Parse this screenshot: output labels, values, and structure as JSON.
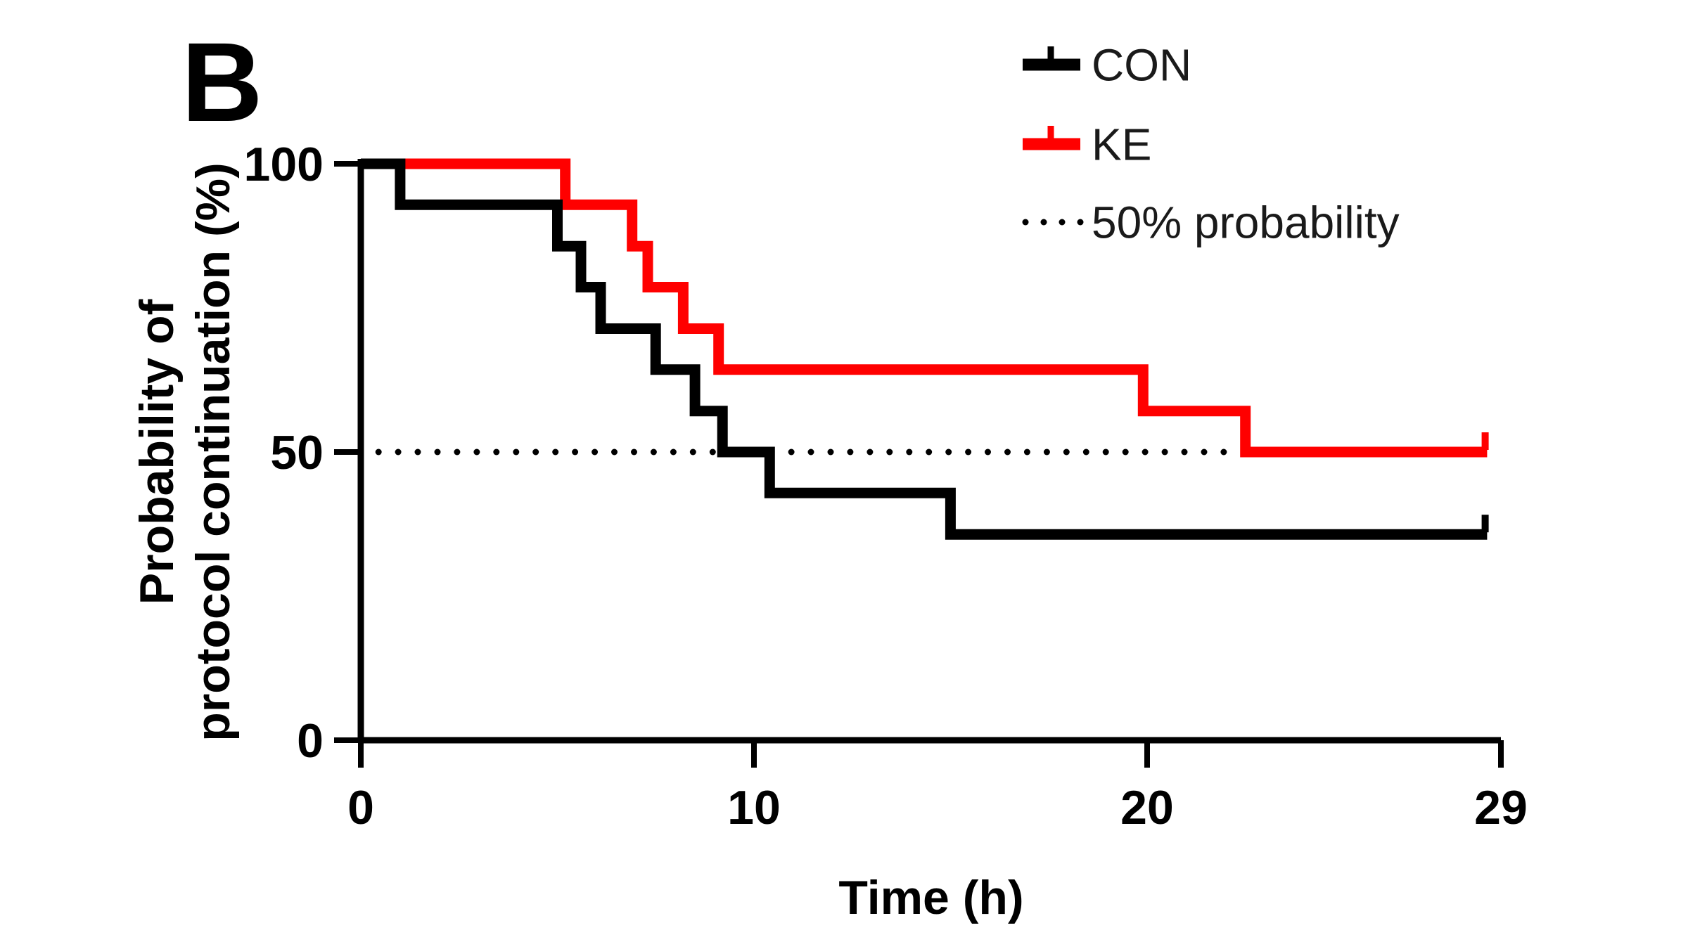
{
  "figure": {
    "panel_label": "B",
    "background_color": "#ffffff"
  },
  "chart_data": {
    "type": "line",
    "subtype": "kaplan-meier-step-survival",
    "title": "",
    "xlabel": "Time (h)",
    "ylabel_lines": [
      "Probability of",
      "protocol continuation (%)"
    ],
    "xlim": [
      0,
      29
    ],
    "ylim": [
      0,
      100
    ],
    "x_ticks": [
      "0",
      "10",
      "20",
      "29"
    ],
    "y_ticks": [
      "100",
      "50",
      "0"
    ],
    "grid": "off",
    "legend_position": "top-right",
    "legend": [
      {
        "label": "CON",
        "color": "#000000",
        "marker": "thick-line-with-censor-tick"
      },
      {
        "label": "KE",
        "color": "#ff0000",
        "marker": "thick-line-with-censor-tick"
      },
      {
        "label": "50% probability",
        "color": "#000000",
        "marker": "dotted-line"
      }
    ],
    "reference_line": {
      "label": "50% probability",
      "y": 50,
      "x_start": 0.45,
      "x_end": 22.05,
      "dot_spacing_h": 0.5,
      "style": "dotted",
      "color": "#000000"
    },
    "series": [
      {
        "name": "CON",
        "color": "#000000",
        "n_at_start": 14,
        "censor_x": 28.6,
        "points": [
          [
            0,
            100
          ],
          [
            1,
            92.9
          ],
          [
            5,
            85.7
          ],
          [
            5.6,
            78.6
          ],
          [
            6.1,
            71.4
          ],
          [
            7.5,
            64.3
          ],
          [
            8.5,
            57.1
          ],
          [
            9.2,
            50
          ],
          [
            10.4,
            42.9
          ],
          [
            15,
            35.7
          ],
          [
            28.65,
            35.7
          ]
        ]
      },
      {
        "name": "KE",
        "color": "#ff0000",
        "n_at_start": 14,
        "censor_x": 28.6,
        "points": [
          [
            0,
            100
          ],
          [
            5.2,
            92.9
          ],
          [
            6.9,
            85.7
          ],
          [
            7.3,
            78.6
          ],
          [
            8.2,
            71.4
          ],
          [
            9.1,
            64.3
          ],
          [
            19.9,
            57.1
          ],
          [
            22.5,
            50
          ],
          [
            28.65,
            50
          ]
        ]
      }
    ]
  }
}
